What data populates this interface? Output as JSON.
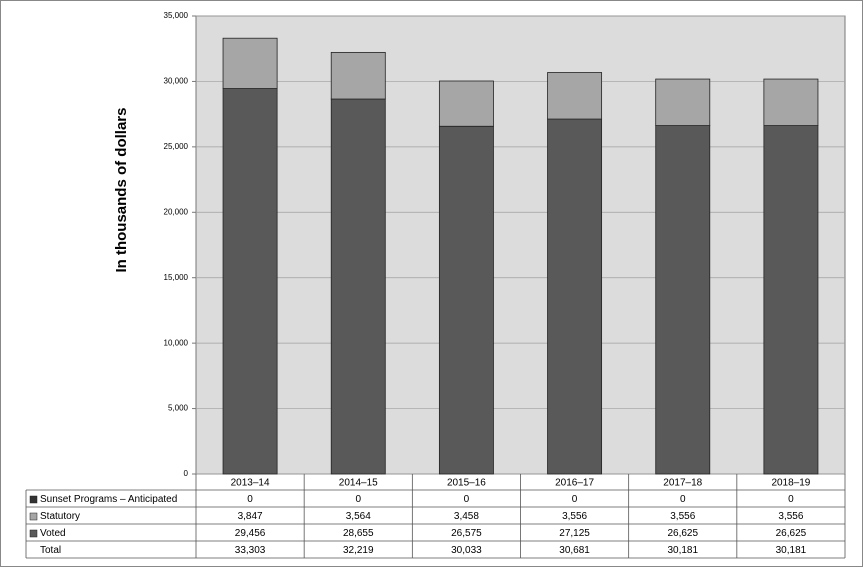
{
  "chart_data": {
    "type": "bar",
    "stacked": true,
    "y_label": "In thousands of dollars",
    "categories": [
      "2013–14",
      "2014–15",
      "2015–16",
      "2016–17",
      "2017–18",
      "2018–19"
    ],
    "series": [
      {
        "name": "Sunset Programs – Anticipated",
        "color": "#333333",
        "values": [
          0,
          0,
          0,
          0,
          0,
          0
        ]
      },
      {
        "name": "Statutory",
        "color": "#a6a6a6",
        "values": [
          3847,
          3564,
          3458,
          3556,
          3556,
          3556
        ],
        "value_labels": [
          "3,847",
          "3,564",
          "3,458",
          "3,556",
          "3,556",
          "3,556"
        ]
      },
      {
        "name": "Voted",
        "color": "#595959",
        "values": [
          29456,
          28655,
          26575,
          27125,
          26625,
          26625
        ],
        "value_labels": [
          "29,456",
          "28,655",
          "26,575",
          "27,125",
          "26,625",
          "26,625"
        ]
      }
    ],
    "total": {
      "name": "Total",
      "values": [
        33303,
        32219,
        30033,
        30681,
        30181,
        30181
      ],
      "value_labels": [
        "33,303",
        "32,219",
        "30,033",
        "30,681",
        "30,181",
        "30,181"
      ]
    },
    "ylim": [
      0,
      35000
    ],
    "yticks": [
      0,
      {
        "value": 5000,
        "label": "5,000"
      },
      {
        "value": 10000,
        "label": "10,000"
      },
      {
        "value": 15000,
        "label": "15,000"
      },
      {
        "value": 20000,
        "label": "20,000"
      },
      {
        "value": 25000,
        "label": "25,000"
      },
      {
        "value": 30000,
        "label": "30,000"
      },
      {
        "value": 35000,
        "label": "35,000"
      }
    ],
    "grid": true
  }
}
